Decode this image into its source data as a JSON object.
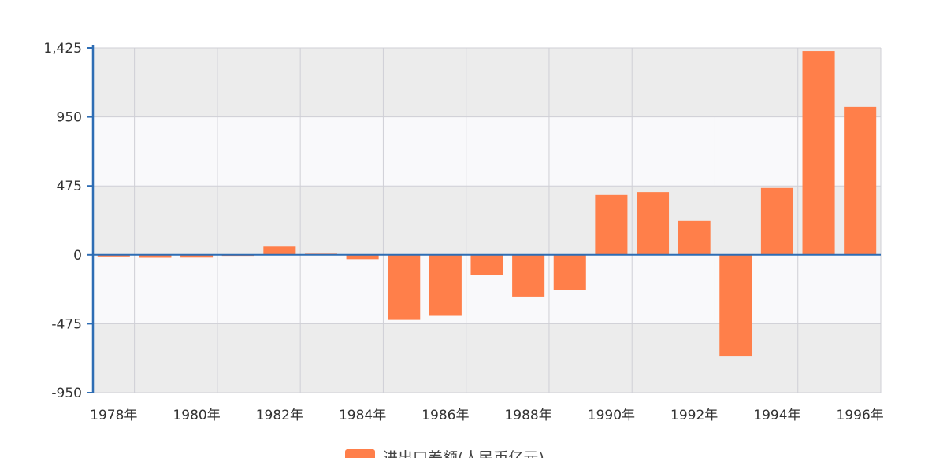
{
  "chart_data": {
    "type": "bar",
    "title": "",
    "xlabel": "",
    "ylabel": "",
    "ylim": [
      -950,
      1425
    ],
    "y_ticks": [
      "1,425",
      "950",
      "475",
      "0",
      "-475",
      "-950"
    ],
    "y_tick_values": [
      1425,
      950,
      475,
      0,
      -475,
      -950
    ],
    "x_tick_labels": [
      "1978年",
      "1980年",
      "1982年",
      "1984年",
      "1986年",
      "1988年",
      "1990年",
      "1992年",
      "1994年",
      "1996年"
    ],
    "grid": true,
    "legend_position": "bottom",
    "categories": [
      "1978年",
      "1979年",
      "1980年",
      "1981年",
      "1982年",
      "1983年",
      "1984年",
      "1985年",
      "1986年",
      "1987年",
      "1988年",
      "1989年",
      "1990年",
      "1991年",
      "1992年",
      "1993年",
      "1994年",
      "1995年",
      "1996年"
    ],
    "series": [
      {
        "name": "进出口差额(人民币亿元)",
        "color": "#FF7F4A",
        "values": [
          -11,
          -20,
          -19,
          1,
          57,
          8,
          -30,
          -449,
          -416,
          -138,
          -288,
          -242,
          412,
          432,
          233,
          -701,
          461,
          1403,
          1019
        ]
      }
    ]
  },
  "colors": {
    "bar": "#FF7F4A",
    "axis": "#2E6DB4",
    "band": "#ECECEC",
    "grid": "#CFCFD6"
  }
}
